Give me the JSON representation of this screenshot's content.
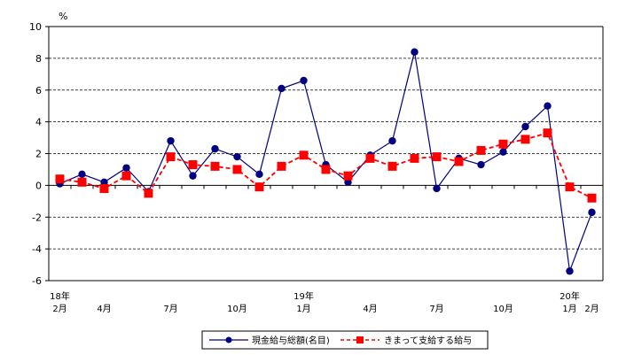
{
  "chart_data": {
    "type": "line",
    "unit_label": "%",
    "ylim": [
      -6,
      10
    ],
    "y_ticks": [
      "10",
      "8",
      "6",
      "4",
      "2",
      "0",
      "-2",
      "-4",
      "-6"
    ],
    "x_labels": [
      {
        "index": 0,
        "top": "18年",
        "bottom": "2月"
      },
      {
        "index": 2,
        "top": "",
        "bottom": "4月"
      },
      {
        "index": 5,
        "top": "",
        "bottom": "7月"
      },
      {
        "index": 8,
        "top": "",
        "bottom": "10月"
      },
      {
        "index": 11,
        "top": "19年",
        "bottom": "1月"
      },
      {
        "index": 14,
        "top": "",
        "bottom": "4月"
      },
      {
        "index": 17,
        "top": "",
        "bottom": "7月"
      },
      {
        "index": 20,
        "top": "",
        "bottom": "10月"
      },
      {
        "index": 23,
        "top": "20年",
        "bottom": "1月"
      },
      {
        "index": 24,
        "top": "",
        "bottom": "2月"
      }
    ],
    "grid": "horizontal-dashed",
    "legend_position": "bottom",
    "series": [
      {
        "name": "現金給与総額(名目)",
        "color": "#000080",
        "line_style": "solid",
        "marker": "circle",
        "values": [
          0.1,
          0.7,
          0.2,
          1.1,
          -0.4,
          2.8,
          0.6,
          2.3,
          1.8,
          0.7,
          6.1,
          6.6,
          1.3,
          0.2,
          1.9,
          2.8,
          8.4,
          -0.2,
          1.7,
          1.3,
          2.1,
          3.7,
          5.0,
          -5.4,
          -1.7
        ]
      },
      {
        "name": "きまって支給する給与",
        "color": "#ff0000",
        "line_style": "dashed",
        "marker": "square",
        "values": [
          0.4,
          0.2,
          -0.2,
          0.6,
          -0.5,
          1.8,
          1.3,
          1.2,
          1.0,
          -0.1,
          1.2,
          1.9,
          1.0,
          0.6,
          1.7,
          1.2,
          1.7,
          1.8,
          1.5,
          2.2,
          2.6,
          2.9,
          3.3,
          -0.1,
          -0.8
        ]
      }
    ]
  }
}
